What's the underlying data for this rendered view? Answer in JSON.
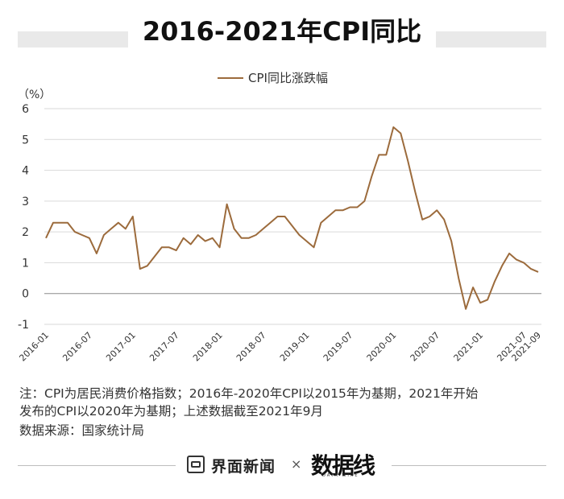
{
  "title": "2016-2021年CPI同比",
  "chart_data": {
    "type": "line",
    "y_unit_label": "（%）",
    "legend": {
      "label": "CPI同比涨跌幅",
      "placement": "top-center"
    },
    "y_range": [
      -1,
      6
    ],
    "y_ticks": [
      -1,
      0,
      1,
      2,
      3,
      4,
      5,
      6
    ],
    "x_tick_labels": [
      "2016-01",
      "2016-07",
      "2017-01",
      "2017-07",
      "2018-01",
      "2018-07",
      "2019-01",
      "2019-07",
      "2020-01",
      "2020-07",
      "2021-01",
      "2021-07",
      "2021-09"
    ],
    "grid": "horizontal",
    "line_color": "#9c6b3c",
    "series": [
      {
        "name": "CPI同比涨跌幅",
        "x": [
          "2016-01",
          "2016-02",
          "2016-03",
          "2016-04",
          "2016-05",
          "2016-06",
          "2016-07",
          "2016-08",
          "2016-09",
          "2016-10",
          "2016-11",
          "2016-12",
          "2017-01",
          "2017-02",
          "2017-03",
          "2017-04",
          "2017-05",
          "2017-06",
          "2017-07",
          "2017-08",
          "2017-09",
          "2017-10",
          "2017-11",
          "2017-12",
          "2018-01",
          "2018-02",
          "2018-03",
          "2018-04",
          "2018-05",
          "2018-06",
          "2018-07",
          "2018-08",
          "2018-09",
          "2018-10",
          "2018-11",
          "2018-12",
          "2019-01",
          "2019-02",
          "2019-03",
          "2019-04",
          "2019-05",
          "2019-06",
          "2019-07",
          "2019-08",
          "2019-09",
          "2019-10",
          "2019-11",
          "2019-12",
          "2020-01",
          "2020-02",
          "2020-03",
          "2020-04",
          "2020-05",
          "2020-06",
          "2020-07",
          "2020-08",
          "2020-09",
          "2020-10",
          "2020-11",
          "2020-12",
          "2021-01",
          "2021-02",
          "2021-03",
          "2021-04",
          "2021-05",
          "2021-06",
          "2021-07",
          "2021-08",
          "2021-09"
        ],
        "values": [
          1.8,
          2.3,
          2.3,
          2.3,
          2.0,
          1.9,
          1.8,
          1.3,
          1.9,
          2.1,
          2.3,
          2.1,
          2.5,
          0.8,
          0.9,
          1.2,
          1.5,
          1.5,
          1.4,
          1.8,
          1.6,
          1.9,
          1.7,
          1.8,
          1.5,
          2.9,
          2.1,
          1.8,
          1.8,
          1.9,
          2.1,
          2.3,
          2.5,
          2.5,
          2.2,
          1.9,
          1.7,
          1.5,
          2.3,
          2.5,
          2.7,
          2.7,
          2.8,
          2.8,
          3.0,
          3.8,
          4.5,
          4.5,
          5.4,
          5.2,
          4.3,
          3.3,
          2.4,
          2.5,
          2.7,
          2.4,
          1.7,
          0.5,
          -0.5,
          0.2,
          -0.3,
          -0.2,
          0.4,
          0.9,
          1.3,
          1.1,
          1.0,
          0.8,
          0.7
        ]
      }
    ]
  },
  "note": {
    "line1": "注：CPI为居民消费价格指数；2016年-2020年CPI以2015年为基期，2021年开始",
    "line2": "发布的CPI以2020年为基期；上述数据截至2021年9月"
  },
  "source": "数据来源：国家统计局",
  "footer": {
    "brand1": "界面新闻",
    "times": "×",
    "brand2": "数据线",
    "brand2_sub": "DATA WIRE"
  }
}
